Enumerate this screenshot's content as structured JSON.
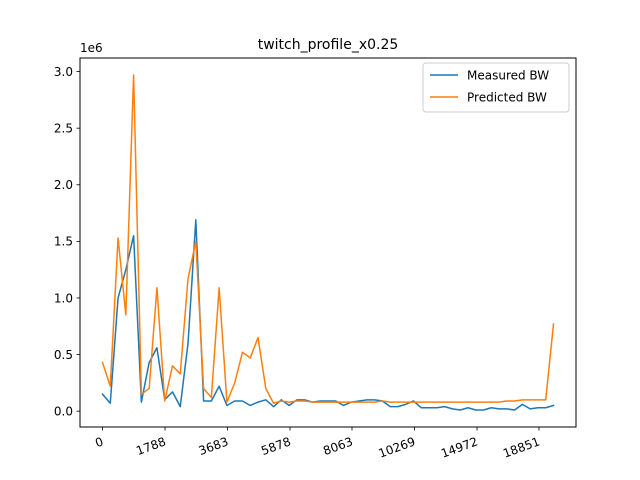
{
  "chart_data": {
    "type": "line",
    "title": "twitch_profile_x0.25",
    "xlabel": "",
    "ylabel": "",
    "y_scale_label": "1e6",
    "x_tick_labels": [
      "0",
      "1788",
      "3683",
      "5878",
      "8063",
      "10269",
      "14972",
      "18851"
    ],
    "y_tick_labels": [
      "0.0",
      "0.5",
      "1.0",
      "1.5",
      "2.0",
      "2.5",
      "3.0"
    ],
    "y_tick_values": [
      0,
      0.5,
      1.0,
      1.5,
      2.0,
      2.5,
      3.0
    ],
    "ylim": [
      -0.14,
      3.12
    ],
    "grid": false,
    "legend_position": "top-right",
    "series": [
      {
        "name": "Measured BW",
        "color": "#1f77b4",
        "values": [
          0.15,
          0.07,
          1.0,
          1.25,
          1.55,
          0.08,
          0.43,
          0.56,
          0.1,
          0.17,
          0.04,
          0.6,
          1.69,
          0.09,
          0.09,
          0.22,
          0.05,
          0.09,
          0.09,
          0.05,
          0.08,
          0.1,
          0.04,
          0.1,
          0.05,
          0.1,
          0.1,
          0.08,
          0.09,
          0.09,
          0.09,
          0.05,
          0.08,
          0.09,
          0.1,
          0.1,
          0.09,
          0.04,
          0.04,
          0.06,
          0.09,
          0.03,
          0.03,
          0.03,
          0.04,
          0.02,
          0.01,
          0.03,
          0.01,
          0.01,
          0.03,
          0.02,
          0.02,
          0.01,
          0.06,
          0.02,
          0.03,
          0.03,
          0.05
        ]
      },
      {
        "name": "Predicted BW",
        "color": "#ff7f0e",
        "values": [
          0.43,
          0.22,
          1.53,
          0.85,
          2.97,
          0.15,
          0.2,
          1.09,
          0.09,
          0.4,
          0.33,
          1.17,
          1.5,
          0.2,
          0.12,
          1.09,
          0.08,
          0.25,
          0.52,
          0.47,
          0.65,
          0.2,
          0.07,
          0.09,
          0.08,
          0.09,
          0.09,
          0.08,
          0.08,
          0.08,
          0.08,
          0.08,
          0.08,
          0.08,
          0.08,
          0.08,
          0.09,
          0.08,
          0.08,
          0.08,
          0.08,
          0.08,
          0.08,
          0.08,
          0.08,
          0.08,
          0.08,
          0.08,
          0.08,
          0.08,
          0.08,
          0.08,
          0.09,
          0.09,
          0.1,
          0.1,
          0.1,
          0.1,
          0.77
        ]
      }
    ]
  }
}
